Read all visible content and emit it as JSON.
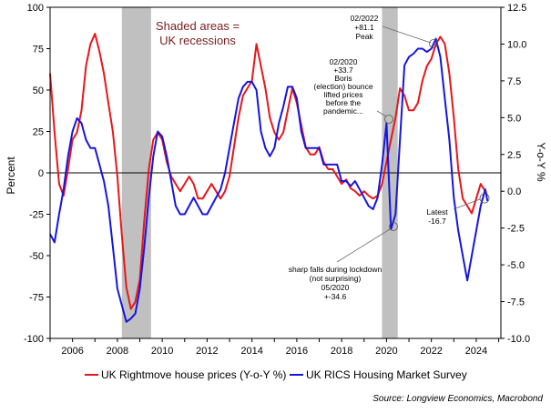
{
  "chart_data": {
    "type": "line",
    "title": "",
    "ylabel_left": "Percent",
    "ylabel_right": "Y-o-Y %",
    "xlim": [
      2005.0,
      2025.1
    ],
    "ylim_left": [
      -100,
      100
    ],
    "ylim_right": [
      -10,
      12.5
    ],
    "x_ticks": [
      2006,
      2008,
      2010,
      2012,
      2014,
      2016,
      2018,
      2020,
      2022,
      2024
    ],
    "left_ticks": [
      100,
      75,
      50,
      25,
      0,
      -25,
      -50,
      -75,
      -100
    ],
    "right_ticks": [
      12.5,
      10.0,
      7.5,
      5.0,
      2.5,
      0.0,
      -2.5,
      -5.0,
      -7.5,
      -10.0
    ],
    "recessions": [
      [
        2008.2,
        2009.5
      ],
      [
        2019.8,
        2020.5
      ]
    ],
    "shade_label": [
      "Shaded areas =",
      "UK recessions"
    ],
    "series": [
      {
        "name": "UK Rightmove house prices (Y-o-Y %)",
        "axis": "right",
        "color": "#e8161b",
        "x": [
          2005.0,
          2005.2,
          2005.4,
          2005.6,
          2005.8,
          2006.0,
          2006.2,
          2006.4,
          2006.6,
          2006.8,
          2007.0,
          2007.2,
          2007.4,
          2007.6,
          2007.8,
          2008.0,
          2008.2,
          2008.4,
          2008.6,
          2008.8,
          2009.0,
          2009.2,
          2009.4,
          2009.6,
          2009.8,
          2010.0,
          2010.2,
          2010.4,
          2010.6,
          2010.8,
          2011.0,
          2011.2,
          2011.4,
          2011.6,
          2011.8,
          2012.0,
          2012.2,
          2012.4,
          2012.6,
          2012.8,
          2013.0,
          2013.2,
          2013.4,
          2013.6,
          2013.8,
          2014.0,
          2014.2,
          2014.4,
          2014.6,
          2014.8,
          2015.0,
          2015.2,
          2015.4,
          2015.6,
          2015.8,
          2016.0,
          2016.2,
          2016.4,
          2016.6,
          2016.8,
          2017.0,
          2017.2,
          2017.4,
          2017.6,
          2017.8,
          2018.0,
          2018.2,
          2018.4,
          2018.6,
          2018.8,
          2019.0,
          2019.2,
          2019.4,
          2019.6,
          2019.8,
          2020.0,
          2020.2,
          2020.4,
          2020.6,
          2020.8,
          2021.0,
          2021.2,
          2021.4,
          2021.6,
          2021.8,
          2022.0,
          2022.2,
          2022.4,
          2022.6,
          2022.8,
          2023.0,
          2023.2,
          2023.4,
          2023.6,
          2023.8,
          2024.0,
          2024.2,
          2024.4,
          2024.5
        ],
        "y": [
          8.0,
          4.0,
          0.5,
          -0.3,
          1.5,
          3.5,
          4.0,
          5.5,
          8.5,
          10.0,
          10.7,
          9.5,
          8.0,
          6.0,
          4.0,
          1.0,
          -3.0,
          -6.5,
          -8.0,
          -7.5,
          -6.0,
          -2.0,
          1.5,
          3.5,
          4.0,
          3.5,
          2.0,
          1.0,
          0.5,
          0.0,
          0.5,
          1.0,
          0.5,
          -0.5,
          -0.5,
          0.0,
          0.5,
          0.0,
          -0.5,
          0.0,
          1.0,
          3.0,
          5.0,
          6.5,
          7.0,
          7.5,
          10.0,
          8.5,
          7.0,
          5.0,
          4.0,
          3.5,
          4.0,
          5.5,
          7.0,
          6.0,
          4.5,
          3.0,
          2.5,
          2.5,
          3.0,
          2.0,
          1.5,
          1.5,
          1.0,
          0.5,
          0.8,
          0.2,
          0.0,
          -0.3,
          0.0,
          -0.3,
          -0.5,
          -0.3,
          0.5,
          2.0,
          3.5,
          5.0,
          7.0,
          6.5,
          5.5,
          5.5,
          6.0,
          7.5,
          8.5,
          9.0,
          10.0,
          10.5,
          10.0,
          8.0,
          5.0,
          1.5,
          -0.5,
          -1.0,
          -1.5,
          -0.5,
          0.5,
          0.0,
          -0.3
        ]
      },
      {
        "name": "UK RICS Housing Market Survey",
        "axis": "left",
        "color": "#1515e0",
        "x": [
          2005.0,
          2005.2,
          2005.4,
          2005.6,
          2005.8,
          2006.0,
          2006.2,
          2006.4,
          2006.6,
          2006.8,
          2007.0,
          2007.2,
          2007.4,
          2007.6,
          2007.8,
          2008.0,
          2008.2,
          2008.4,
          2008.6,
          2008.8,
          2009.0,
          2009.2,
          2009.4,
          2009.6,
          2009.8,
          2010.0,
          2010.2,
          2010.4,
          2010.6,
          2010.8,
          2011.0,
          2011.2,
          2011.4,
          2011.6,
          2011.8,
          2012.0,
          2012.2,
          2012.4,
          2012.6,
          2012.8,
          2013.0,
          2013.2,
          2013.4,
          2013.6,
          2013.8,
          2014.0,
          2014.2,
          2014.4,
          2014.6,
          2014.8,
          2015.0,
          2015.2,
          2015.4,
          2015.6,
          2015.8,
          2016.0,
          2016.2,
          2016.4,
          2016.6,
          2016.8,
          2017.0,
          2017.2,
          2017.4,
          2017.6,
          2017.8,
          2018.0,
          2018.2,
          2018.4,
          2018.6,
          2018.8,
          2019.0,
          2019.2,
          2019.4,
          2019.6,
          2019.8,
          2020.0,
          2020.2,
          2020.4,
          2020.6,
          2020.8,
          2021.0,
          2021.2,
          2021.4,
          2021.6,
          2021.8,
          2022.0,
          2022.2,
          2022.4,
          2022.6,
          2022.8,
          2023.0,
          2023.2,
          2023.4,
          2023.6,
          2023.8,
          2024.0,
          2024.2,
          2024.4,
          2024.5
        ],
        "y": [
          -37,
          -42,
          -25,
          -10,
          10,
          25,
          33,
          30,
          20,
          15,
          15,
          5,
          -5,
          -20,
          -45,
          -70,
          -80,
          -90,
          -88,
          -85,
          -70,
          -45,
          -15,
          10,
          25,
          22,
          10,
          -5,
          -20,
          -25,
          -25,
          -20,
          -15,
          -20,
          -25,
          -25,
          -20,
          -15,
          -10,
          0,
          15,
          30,
          45,
          52,
          55,
          55,
          50,
          25,
          15,
          10,
          15,
          30,
          40,
          52,
          52,
          45,
          25,
          15,
          15,
          15,
          15,
          5,
          5,
          5,
          5,
          -5,
          -5,
          -8,
          -5,
          -10,
          -15,
          -20,
          -22,
          -15,
          5,
          30,
          -34,
          -25,
          20,
          65,
          70,
          72,
          75,
          75,
          73,
          75,
          81,
          70,
          45,
          20,
          -15,
          -35,
          -50,
          -65,
          -50,
          -35,
          -20,
          -10,
          -17
        ]
      }
    ],
    "annotations": [
      {
        "id": "peak",
        "lines": [
          "02/2022",
          "+81.1",
          "Peak"
        ]
      },
      {
        "id": "boris",
        "lines": [
          "02/2020",
          "+33.7",
          "Boris",
          "(election) bounce",
          "lifted prices",
          "before the",
          "pandemic..."
        ]
      },
      {
        "id": "lockdown",
        "lines": [
          "sharp falls during lockdown",
          "(not surprising)",
          "05/2020",
          "+-34.6"
        ]
      },
      {
        "id": "latest",
        "lines": [
          "Latest",
          "-16.7"
        ]
      }
    ],
    "legend": [
      "UK Rightmove house prices (Y-o-Y %)",
      "UK RICS Housing Market Survey"
    ],
    "source": "Source: Longview Economics, Macrobond"
  }
}
